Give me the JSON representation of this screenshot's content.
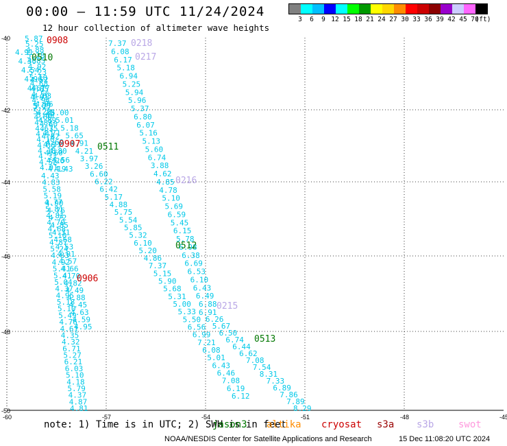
{
  "title": "00:00 – 11:59 UTC 11/24/2024",
  "subtitle": "12 hour collection of altimeter wave heights",
  "legend": {
    "swatches": [
      "#808080",
      "#00ffff",
      "#00bfff",
      "#0000ff",
      "#00ffff",
      "#00ff00",
      "#009900",
      "#ffff00",
      "#ffd700",
      "#ff8c00",
      "#ff0000",
      "#cc0000",
      "#8b0000",
      "#9900cc",
      "#ccccff",
      "#ff66ff",
      "#000000"
    ],
    "labels": [
      "3",
      "6",
      "9",
      "12",
      "15",
      "18",
      "21",
      "24",
      "27",
      "30",
      "33",
      "36",
      "39",
      "42",
      "45",
      "70",
      "(ft)"
    ]
  },
  "axes": {
    "lat_labels": [
      "-40",
      "-42",
      "-44",
      "-46",
      "-48",
      "-50"
    ],
    "lon_labels": [
      "-60",
      "-57",
      "-54",
      "-51",
      "-48",
      "-45"
    ]
  },
  "pass_labels": [
    {
      "text": "0908",
      "color": "#cc0000"
    },
    {
      "text": "0510",
      "color": "#007700"
    },
    {
      "text": "0218",
      "color": "#b9a7e6"
    },
    {
      "text": "0217",
      "color": "#b9a7e6"
    },
    {
      "text": "0907",
      "color": "#cc0000"
    },
    {
      "text": "0511",
      "color": "#007700"
    },
    {
      "text": "0216",
      "color": "#b9a7e6"
    },
    {
      "text": "0512",
      "color": "#007700"
    },
    {
      "text": "0906",
      "color": "#cc0000"
    },
    {
      "text": "0215",
      "color": "#b9a7e6"
    },
    {
      "text": "0513",
      "color": "#007700"
    }
  ],
  "tracks": {
    "track_0217": [
      "7.37",
      "6.08",
      "6.17",
      "5.18",
      "6.94",
      "5.25",
      "5.94",
      "5.96",
      "5.37",
      "6.80",
      "6.07",
      "5.16",
      "5.13",
      "5.60",
      "6.74",
      "3.88",
      "4.62",
      "4.85",
      "4.78",
      "5.10",
      "5.69",
      "6.59",
      "5.45",
      "6.15",
      "5.78",
      "6.98",
      "6.38",
      "6.69",
      "6.53",
      "6.10",
      "6.43",
      "6.49",
      "6.88"
    ],
    "track_0511": [
      "5.00",
      "5.01",
      "5.18",
      "5.65",
      "4.91",
      "4.21",
      "3.97",
      "3.26",
      "6.60",
      "6.22",
      "6.42",
      "5.17",
      "4.88",
      "5.75",
      "5.54",
      "5.85",
      "5.32",
      "6.10",
      "5.20",
      "4.86",
      "7.37",
      "5.15",
      "5.90",
      "5.68",
      "5.31",
      "5.00",
      "5.33",
      "5.50",
      "6.56",
      "6.99",
      "7.21",
      "6.08",
      "5.01",
      "6.43",
      "6.46",
      "7.08",
      "6.19",
      "6.12"
    ],
    "track_0216": [
      "6.91",
      "6.26",
      "5.67",
      "6.50",
      "6.74",
      "6.44",
      "6.62",
      "7.08",
      "7.54",
      "8.31",
      "7.33",
      "6.89",
      "7.86",
      "7.89",
      "8.29"
    ],
    "track_0906": [
      "4.43",
      "4.83",
      "5.58",
      "5.19",
      "4.77",
      "5.81",
      "4.81",
      "4.70",
      "4.68",
      "5.10",
      "4.87",
      "5.24",
      "4.83",
      "4.92",
      "5.41",
      "5.41",
      "5.04",
      "4.37",
      "4.95",
      "5.18",
      "5.10",
      "5.49",
      "4.76",
      "4.61",
      "4.35",
      "4.32",
      "6.71",
      "5.27",
      "6.21",
      "6.03",
      "5.10",
      "4.18",
      "5.79",
      "4.37",
      "4.87",
      "4.81"
    ],
    "track_0510": [
      "5.87",
      "5.25",
      "4.88",
      "5.28",
      "4.85",
      "4.92",
      "5.23",
      "5.10",
      "4.68",
      "4.85",
      "4.56",
      "4.94",
      "5.05",
      "5.29",
      "4.60",
      "4.82",
      "4.63",
      "4.41",
      "4.10",
      "4.06",
      "4.18",
      "4.33",
      "4.52",
      "4.01"
    ]
  },
  "note": {
    "prefix": "note:  1) Time is in UTC; 2) SWH is in feet",
    "sats": [
      {
        "name": "jason3",
        "color": "#007700"
      },
      {
        "name": "altika",
        "color": "#ff8c00"
      },
      {
        "name": "cryosat",
        "color": "#cc0000"
      },
      {
        "name": "s3a",
        "color": "#990000"
      },
      {
        "name": "s3b",
        "color": "#b9a7e6"
      },
      {
        "name": "swot",
        "color": "#ff99dd"
      }
    ]
  },
  "credit": {
    "left": "NOAA/NESDIS Center for Satellite Applications and Research",
    "right": "15 Dec 11:08:20 UTC 2024"
  },
  "colors": {
    "track_value": "#00c8e8",
    "grid": "#000000"
  }
}
